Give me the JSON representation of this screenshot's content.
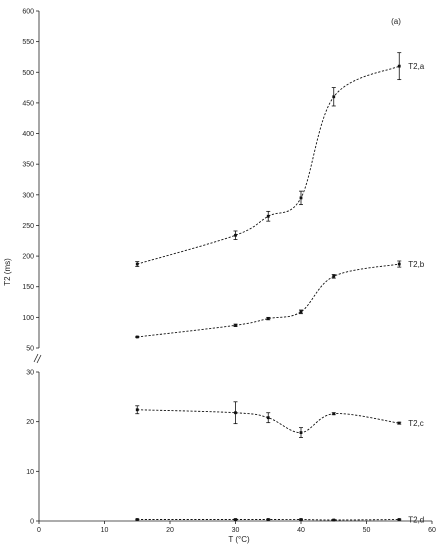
{
  "chart_data": {
    "type": "line",
    "panel_label": "(a)",
    "xlabel": "T (°C)",
    "ylabel": "T2 (ms)",
    "x_axis": {
      "range": [
        0,
        60
      ],
      "ticks": [
        0,
        10,
        20,
        30,
        40,
        50,
        60
      ]
    },
    "y_axis_upper": {
      "range": [
        50,
        600
      ],
      "ticks": [
        50,
        100,
        150,
        200,
        250,
        300,
        350,
        400,
        450,
        500,
        550,
        600
      ]
    },
    "y_axis_lower": {
      "range": [
        0,
        30
      ],
      "ticks": [
        0,
        10,
        20,
        30
      ]
    },
    "axis_break": "//",
    "grid": false,
    "series": [
      {
        "name": "T2,a",
        "panel": "upper",
        "x": [
          15,
          30,
          35,
          40,
          45,
          55
        ],
        "y": [
          187,
          234,
          265,
          295,
          460,
          510
        ],
        "error": [
          4,
          7,
          8,
          11,
          15,
          22
        ]
      },
      {
        "name": "T2,b",
        "panel": "upper",
        "x": [
          15,
          30,
          35,
          40,
          45,
          55
        ],
        "y": [
          68,
          87,
          98,
          109,
          167,
          187
        ],
        "error": [
          1,
          2,
          2,
          3,
          3,
          5
        ]
      },
      {
        "name": "T2,c",
        "panel": "lower",
        "x": [
          15,
          30,
          35,
          40,
          45,
          55
        ],
        "y": [
          22.4,
          21.8,
          20.8,
          17.8,
          21.6,
          19.7
        ],
        "error": [
          0.8,
          2.2,
          1.0,
          1.0,
          0.2,
          0.2
        ]
      },
      {
        "name": "T2,d",
        "panel": "lower",
        "x": [
          15,
          30,
          35,
          40,
          45,
          55
        ],
        "y": [
          0.3,
          0.3,
          0.3,
          0.3,
          0.2,
          0.3
        ],
        "error": [
          0.1,
          0.1,
          0.1,
          0.1,
          0.1,
          0.1
        ]
      }
    ]
  }
}
